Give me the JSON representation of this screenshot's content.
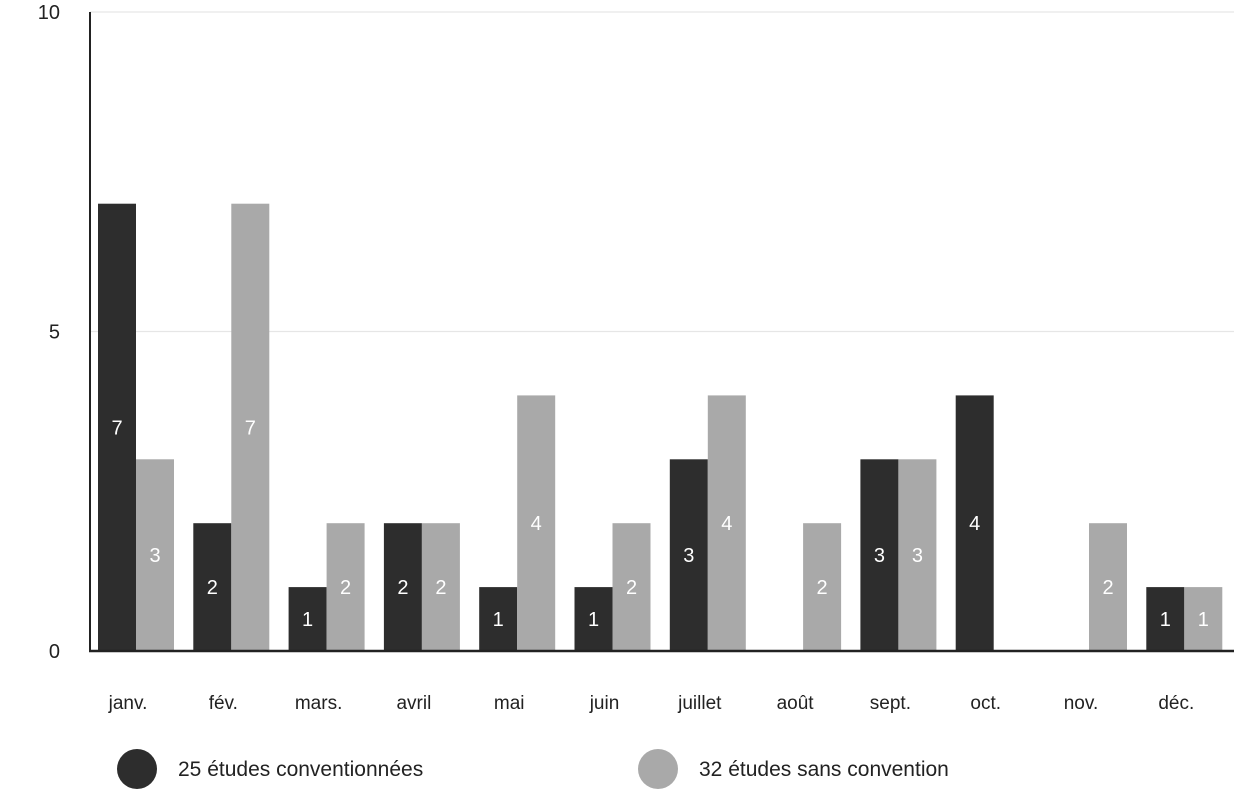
{
  "chart_data": {
    "type": "bar",
    "categories": [
      "janv.",
      "fév.",
      "mars.",
      "avril",
      "mai",
      "juin",
      "juillet",
      "août",
      "sept.",
      "oct.",
      "nov.",
      "déc."
    ],
    "series": [
      {
        "name": "25 études conventionnées",
        "color": "#2d2d2d",
        "values": [
          7,
          2,
          1,
          2,
          1,
          1,
          3,
          0,
          3,
          4,
          0,
          1
        ],
        "labels": [
          "7",
          "2",
          "1",
          "2",
          "1",
          "1",
          "3",
          "",
          "3",
          "4",
          "",
          "1"
        ]
      },
      {
        "name": "32 études sans convention",
        "color": "#a9a9a9",
        "values": [
          3,
          7,
          2,
          2,
          4,
          2,
          4,
          2,
          3,
          0,
          2,
          1
        ],
        "labels": [
          "3",
          "7",
          "2",
          "2",
          "4",
          "2",
          "4",
          "2",
          "3",
          "",
          "2",
          "1"
        ]
      }
    ],
    "yticks": [
      "0",
      "5",
      "10"
    ],
    "ylim": [
      0,
      10
    ],
    "grid": true,
    "legend_position": "bottom-left"
  }
}
